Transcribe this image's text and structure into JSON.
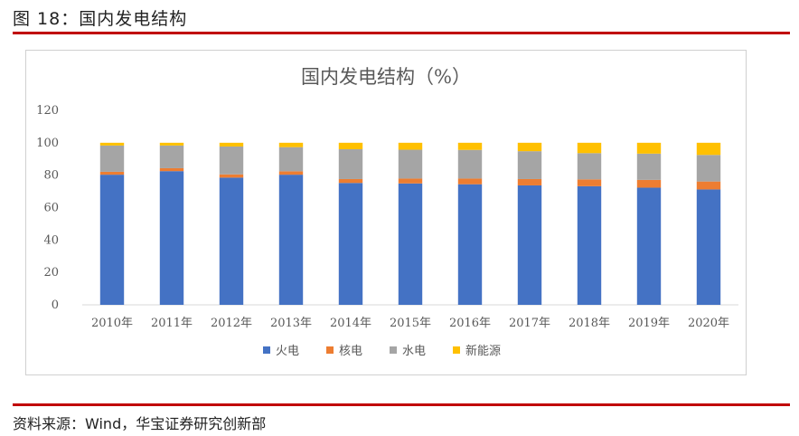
{
  "figure": {
    "title": "图 18：国内发电结构"
  },
  "source": {
    "prefix": "资料来源：",
    "text": "Wind，华宝证券研究创新部"
  },
  "chart_data": {
    "type": "bar",
    "stacked": true,
    "title": "国内发电结构（%）",
    "xlabel": "",
    "ylabel": "",
    "ylim": [
      0,
      120
    ],
    "yticks": [
      0,
      20,
      40,
      60,
      80,
      100,
      120
    ],
    "grid": false,
    "legend_position": "bottom",
    "categories": [
      "2010年",
      "2011年",
      "2012年",
      "2013年",
      "2014年",
      "2015年",
      "2016年",
      "2017年",
      "2018年",
      "2019年",
      "2020年"
    ],
    "series": [
      {
        "name": "火电",
        "color": "#4472c4",
        "values": [
          80.3,
          82.5,
          78.5,
          80.3,
          75.2,
          74.9,
          74.4,
          73.7,
          73.2,
          72.3,
          71.2
        ]
      },
      {
        "name": "核电",
        "color": "#ed7d31",
        "values": [
          1.8,
          1.8,
          2.0,
          2.1,
          2.4,
          3.0,
          3.5,
          3.9,
          4.2,
          4.8,
          4.9
        ]
      },
      {
        "name": "水电",
        "color": "#a5a5a5",
        "values": [
          16.2,
          14.0,
          17.2,
          14.9,
          18.4,
          17.8,
          17.7,
          17.2,
          16.2,
          16.2,
          16.4
        ]
      },
      {
        "name": "新能源",
        "color": "#ffc000",
        "values": [
          1.7,
          1.7,
          2.3,
          2.7,
          4.0,
          4.3,
          4.4,
          5.2,
          6.4,
          6.7,
          7.5
        ]
      }
    ]
  }
}
